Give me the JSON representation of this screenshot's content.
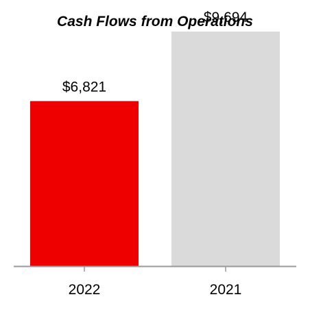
{
  "chart_data": {
    "type": "bar",
    "title": "Cash Flows from Operations",
    "categories": [
      "2022",
      "2021"
    ],
    "values": [
      6821,
      9694
    ],
    "value_labels": [
      "$6,821",
      "$9,694"
    ],
    "bar_colors": [
      "#ee0000",
      "#d9dad9"
    ],
    "axis_color": "#999999",
    "ylim": [
      0,
      11000
    ],
    "grid": false,
    "legend": "none",
    "xlabel": "",
    "ylabel": ""
  }
}
